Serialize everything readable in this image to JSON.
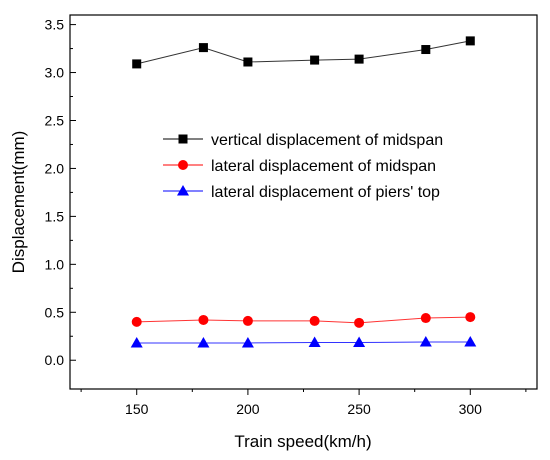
{
  "chart_data": {
    "type": "line",
    "title": "",
    "xlabel": "Train speed(km/h)",
    "ylabel": "Displacement(mm)",
    "xlim": [
      120,
      330
    ],
    "ylim": [
      -0.3,
      3.6
    ],
    "xticks": [
      150,
      200,
      250,
      300
    ],
    "xtick_labels": [
      "150",
      "200",
      "250",
      "300"
    ],
    "yticks": [
      0.0,
      0.5,
      1.0,
      1.5,
      2.0,
      2.5,
      3.0,
      3.5
    ],
    "ytick_labels": [
      "0.0",
      "0.5",
      "1.0",
      "1.5",
      "2.0",
      "2.5",
      "3.0",
      "3.5"
    ],
    "grid": false,
    "legend_position": "center",
    "x": [
      150,
      180,
      200,
      230,
      250,
      280,
      300
    ],
    "series": [
      {
        "name": "vertical displacement of midspan",
        "marker": "square",
        "color": "#000000",
        "values": [
          3.09,
          3.26,
          3.11,
          3.13,
          3.14,
          3.24,
          3.33
        ]
      },
      {
        "name": "lateral displacement of midspan",
        "marker": "circle",
        "color": "#ff0000",
        "values": [
          0.4,
          0.42,
          0.41,
          0.41,
          0.39,
          0.44,
          0.45
        ]
      },
      {
        "name": "lateral displacement of piers' top",
        "marker": "triangle",
        "color": "#0000ff",
        "values": [
          0.18,
          0.18,
          0.18,
          0.185,
          0.185,
          0.19,
          0.19
        ]
      }
    ]
  }
}
